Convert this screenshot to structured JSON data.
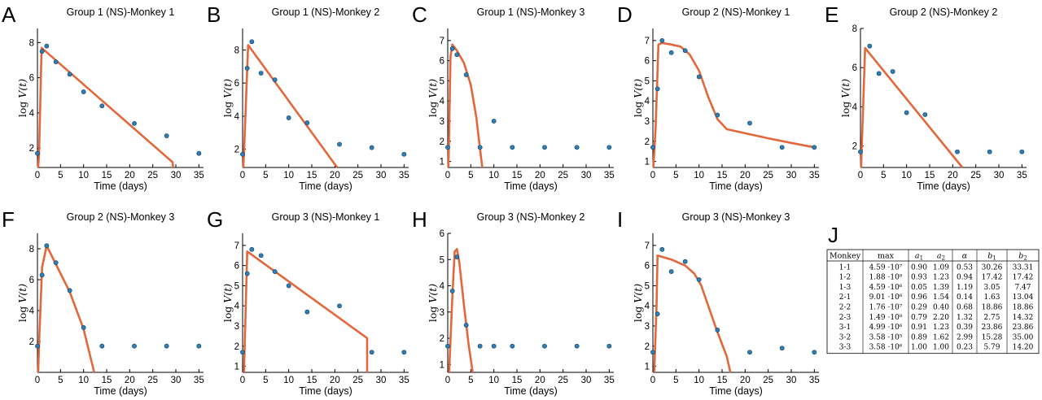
{
  "chart_data": [
    {
      "letter": "A",
      "type": "scatter",
      "title": "Group 1 (NS)-Monkey 1",
      "xlabel": "Time (days)",
      "ylabel": "log V(t)",
      "xlim": [
        0,
        36
      ],
      "ylim": [
        0.9,
        8.8
      ],
      "xticks": [
        0,
        5,
        10,
        15,
        20,
        25,
        30,
        35
      ],
      "yticks": [
        2,
        4,
        6,
        8
      ],
      "points": [
        [
          0,
          1.7
        ],
        [
          1,
          7.5
        ],
        [
          2,
          7.8
        ],
        [
          4,
          6.9
        ],
        [
          7,
          6.2
        ],
        [
          10,
          5.2
        ],
        [
          14,
          4.4
        ],
        [
          21,
          3.4
        ],
        [
          28,
          2.7
        ],
        [
          35,
          1.7
        ]
      ],
      "fit": [
        [
          0.15,
          0.9
        ],
        [
          0.35,
          1.7
        ],
        [
          0.9,
          7.7
        ],
        [
          29.3,
          1.2
        ],
        [
          29.4,
          0.9
        ]
      ]
    },
    {
      "letter": "B",
      "type": "scatter",
      "title": "Group 1 (NS)-Monkey 2",
      "xlabel": "Time (days)",
      "ylabel": "log V(t)",
      "xlim": [
        0,
        36
      ],
      "ylim": [
        0.9,
        9.3
      ],
      "xticks": [
        0,
        5,
        10,
        15,
        20,
        25,
        30,
        35
      ],
      "yticks": [
        2,
        4,
        6,
        8
      ],
      "points": [
        [
          0,
          1.7
        ],
        [
          1,
          6.9
        ],
        [
          2,
          8.5
        ],
        [
          4,
          6.6
        ],
        [
          7,
          6.2
        ],
        [
          10,
          3.9
        ],
        [
          14,
          3.6
        ],
        [
          21,
          2.3
        ],
        [
          28,
          2.1
        ],
        [
          35,
          1.7
        ]
      ],
      "fit": [
        [
          0.15,
          0.9
        ],
        [
          0.4,
          2.5
        ],
        [
          1.2,
          8.3
        ],
        [
          20.5,
          0.9
        ]
      ]
    },
    {
      "letter": "C",
      "type": "scatter",
      "title": "Group 1 (NS)-Monkey 3",
      "xlabel": "Time (days)",
      "ylabel": "log V(t)",
      "xlim": [
        0,
        36
      ],
      "ylim": [
        0.7,
        7.6
      ],
      "xticks": [
        0,
        5,
        10,
        15,
        20,
        25,
        30,
        35
      ],
      "yticks": [
        1,
        2,
        3,
        4,
        5,
        6,
        7
      ],
      "points": [
        [
          0,
          1.7
        ],
        [
          1,
          6.6
        ],
        [
          2,
          6.3
        ],
        [
          4,
          5.3
        ],
        [
          7,
          1.7
        ],
        [
          10,
          3.0
        ],
        [
          14,
          1.7
        ],
        [
          21,
          1.7
        ],
        [
          28,
          1.7
        ],
        [
          35,
          1.7
        ]
      ],
      "fit": [
        [
          0.15,
          0.7
        ],
        [
          0.6,
          6.2
        ],
        [
          1.0,
          6.8
        ],
        [
          2.0,
          6.5
        ],
        [
          3.5,
          5.9
        ],
        [
          5.0,
          4.8
        ],
        [
          6.2,
          3.2
        ],
        [
          7.0,
          1.6
        ],
        [
          7.5,
          0.7
        ]
      ]
    },
    {
      "letter": "D",
      "type": "scatter",
      "title": "Group 2 (NS)-Monkey 1",
      "xlabel": "Time (days)",
      "ylabel": "log V(t)",
      "xlim": [
        0,
        36
      ],
      "ylim": [
        0.7,
        7.6
      ],
      "xticks": [
        0,
        5,
        10,
        15,
        20,
        25,
        30,
        35
      ],
      "yticks": [
        1,
        2,
        3,
        4,
        5,
        6,
        7
      ],
      "points": [
        [
          0,
          1.7
        ],
        [
          1,
          4.6
        ],
        [
          2,
          7.0
        ],
        [
          4,
          6.4
        ],
        [
          7,
          6.5
        ],
        [
          10,
          5.2
        ],
        [
          14,
          3.3
        ],
        [
          21,
          2.9
        ],
        [
          28,
          1.7
        ],
        [
          35,
          1.7
        ]
      ],
      "fit": [
        [
          0.1,
          0.7
        ],
        [
          0.6,
          2.7
        ],
        [
          1.2,
          6.8
        ],
        [
          2,
          6.88
        ],
        [
          4,
          6.8
        ],
        [
          6,
          6.7
        ],
        [
          8,
          6.3
        ],
        [
          10,
          5.5
        ],
        [
          12,
          4.2
        ],
        [
          14,
          3.1
        ],
        [
          16,
          2.6
        ],
        [
          20,
          2.4
        ],
        [
          25,
          2.15
        ],
        [
          30,
          1.92
        ],
        [
          35,
          1.7
        ]
      ]
    },
    {
      "letter": "E",
      "type": "scatter",
      "title": "Group 2 (NS)-Monkey 2",
      "xlabel": "Time (days)",
      "ylabel": "log V(t)",
      "xlim": [
        0,
        36
      ],
      "ylim": [
        0.9,
        8.0
      ],
      "xticks": [
        0,
        5,
        10,
        15,
        20,
        25,
        30,
        35
      ],
      "yticks": [
        2,
        4,
        6,
        8
      ],
      "points": [
        [
          0,
          1.7
        ],
        [
          2,
          7.1
        ],
        [
          4,
          5.7
        ],
        [
          7,
          5.8
        ],
        [
          10,
          3.7
        ],
        [
          14,
          3.6
        ],
        [
          21,
          1.7
        ],
        [
          28,
          1.7
        ],
        [
          35,
          1.7
        ]
      ],
      "fit": [
        [
          0.15,
          0.9
        ],
        [
          0.4,
          2.8
        ],
        [
          1.0,
          7.0
        ],
        [
          22.1,
          0.9
        ]
      ]
    },
    {
      "letter": "F",
      "type": "scatter",
      "title": "Group 2 (NS)-Monkey 3",
      "xlabel": "Time (days)",
      "ylabel": "log V(t)",
      "xlim": [
        0,
        36
      ],
      "ylim": [
        0,
        9.0
      ],
      "xticks": [
        0,
        5,
        10,
        15,
        20,
        25,
        30,
        35
      ],
      "yticks": [
        2,
        4,
        6,
        8
      ],
      "points": [
        [
          0,
          1.7
        ],
        [
          1,
          6.3
        ],
        [
          2,
          8.2
        ],
        [
          4,
          7.1
        ],
        [
          7,
          5.3
        ],
        [
          10,
          2.9
        ],
        [
          14,
          1.7
        ],
        [
          21,
          1.7
        ],
        [
          28,
          1.7
        ],
        [
          35,
          1.7
        ]
      ],
      "fit": [
        [
          0.15,
          0
        ],
        [
          0.4,
          2.3
        ],
        [
          1.0,
          6.8
        ],
        [
          2.0,
          8.2
        ],
        [
          4.0,
          7.0
        ],
        [
          7.0,
          5.2
        ],
        [
          10.0,
          2.8
        ],
        [
          12.3,
          0
        ]
      ]
    },
    {
      "letter": "G",
      "type": "scatter",
      "title": "Group 3 (NS)-Monkey 1",
      "xlabel": "Time (days)",
      "ylabel": "log V(t)",
      "xlim": [
        0,
        36
      ],
      "ylim": [
        0.7,
        7.6
      ],
      "xticks": [
        0,
        5,
        10,
        15,
        20,
        25,
        30,
        35
      ],
      "yticks": [
        1,
        2,
        3,
        4,
        5,
        6,
        7
      ],
      "points": [
        [
          0,
          1.7
        ],
        [
          1,
          5.6
        ],
        [
          2,
          6.8
        ],
        [
          4,
          6.5
        ],
        [
          7,
          5.7
        ],
        [
          10,
          5.0
        ],
        [
          14,
          3.7
        ],
        [
          21,
          4.0
        ],
        [
          28,
          1.7
        ],
        [
          35,
          1.7
        ]
      ],
      "fit": [
        [
          0.3,
          0.7
        ],
        [
          1.0,
          6.7
        ],
        [
          27.0,
          2.4
        ],
        [
          27.0,
          0.7
        ]
      ]
    },
    {
      "letter": "H",
      "type": "scatter",
      "title": "Group 3 (NS)-Monkey 2",
      "xlabel": "Time (days)",
      "ylabel": "log V(t)",
      "xlim": [
        0,
        36
      ],
      "ylim": [
        0.7,
        6.0
      ],
      "xticks": [
        0,
        5,
        10,
        15,
        20,
        25,
        30,
        35
      ],
      "yticks": [
        1,
        2,
        3,
        4,
        5,
        6
      ],
      "points": [
        [
          0,
          1.7
        ],
        [
          1,
          3.8
        ],
        [
          2,
          5.1
        ],
        [
          4,
          2.5
        ],
        [
          7,
          1.7
        ],
        [
          10,
          1.7
        ],
        [
          14,
          1.7
        ],
        [
          21,
          1.7
        ],
        [
          28,
          1.7
        ],
        [
          35,
          1.7
        ]
      ],
      "fit": [
        [
          0.3,
          0.7
        ],
        [
          1.0,
          3.6
        ],
        [
          1.5,
          5.3
        ],
        [
          2.0,
          5.4
        ],
        [
          2.5,
          4.9
        ],
        [
          3.5,
          3.3
        ],
        [
          4.5,
          1.8
        ],
        [
          5.4,
          0.7
        ]
      ]
    },
    {
      "letter": "I",
      "type": "scatter",
      "title": "Group 3 (NS)-Monkey 3",
      "xlabel": "Time (days)",
      "ylabel": "log V(t)",
      "xlim": [
        0,
        36
      ],
      "ylim": [
        0.7,
        7.6
      ],
      "xticks": [
        0,
        5,
        10,
        15,
        20,
        25,
        30,
        35
      ],
      "yticks": [
        1,
        2,
        3,
        4,
        5,
        6,
        7
      ],
      "points": [
        [
          0,
          1.7
        ],
        [
          1,
          3.6
        ],
        [
          2,
          6.8
        ],
        [
          4,
          5.7
        ],
        [
          7,
          6.2
        ],
        [
          10,
          5.3
        ],
        [
          14,
          2.8
        ],
        [
          21,
          1.7
        ],
        [
          28,
          1.9
        ],
        [
          35,
          1.7
        ]
      ],
      "fit": [
        [
          0.3,
          0.7
        ],
        [
          0.8,
          4.0
        ],
        [
          1.0,
          6.5
        ],
        [
          4,
          6.3
        ],
        [
          7,
          6.0
        ],
        [
          9,
          5.6
        ],
        [
          10.5,
          5.0
        ],
        [
          12,
          4.0
        ],
        [
          14,
          2.7
        ],
        [
          16,
          1.5
        ],
        [
          16.8,
          0.7
        ]
      ]
    }
  ],
  "table": {
    "letter": "J",
    "headers": [
      "Monkey",
      "max",
      "a1",
      "a2",
      "α",
      "b1",
      "b2"
    ],
    "rows": [
      [
        "1-1",
        "4.59 ·10⁷",
        "0.90",
        "1.09",
        "0.53",
        "30.26",
        "33.31"
      ],
      [
        "1-2",
        "1.88 ·10⁸",
        "0.93",
        "1.23",
        "0.94",
        "17.42",
        "17.42"
      ],
      [
        "1-3",
        "4.59 ·10⁶",
        "0.05",
        "1.39",
        "1.19",
        "3.05",
        "7.47"
      ],
      [
        "2-1",
        "9.01 ·10⁶",
        "0.96",
        "1.54",
        "0.14",
        "1.63",
        "13.04"
      ],
      [
        "2-2",
        "1.76 ·10⁷",
        "0.29",
        "0.40",
        "0.68",
        "18.86",
        "18.86"
      ],
      [
        "2-3",
        "1.49 ·10⁸",
        "0.79",
        "2.20",
        "1.32",
        "2.75",
        "14.32"
      ],
      [
        "3-1",
        "4.99 ·10⁶",
        "0.91",
        "1.23",
        "0.39",
        "23.86",
        "23.86"
      ],
      [
        "3-2",
        "3.58 ·10⁵",
        "0.89",
        "1.62",
        "2.99",
        "15.28",
        "35.00"
      ],
      [
        "3-3",
        "3.58 ·10⁶",
        "1.00",
        "1.00",
        "0.23",
        "5.79",
        "14.20"
      ]
    ]
  },
  "colors": {
    "fit": "#e2683c",
    "point_fill": "#2e7fb8",
    "point_edge": "#123a5a",
    "axis": "#000000"
  }
}
